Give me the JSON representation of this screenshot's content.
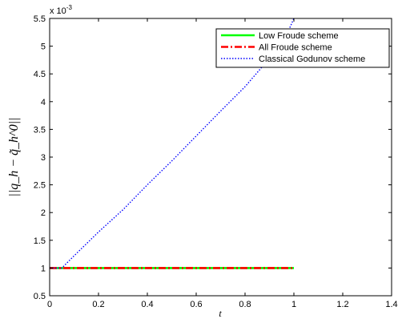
{
  "chart_data": {
    "type": "line",
    "title": "",
    "xlabel": "t",
    "ylabel": "||q_h − q̃_h^0||",
    "y_exponent": "x 10",
    "y_exponent_power": "-3",
    "xlim": [
      0,
      1.4
    ],
    "ylim": [
      0.5,
      5.5
    ],
    "xticks": [
      "0",
      "0.2",
      "0.4",
      "0.6",
      "0.8",
      "1",
      "1.2",
      "1.4"
    ],
    "yticks": [
      "0.5",
      "1",
      "1.5",
      "2",
      "2.5",
      "3",
      "3.5",
      "4",
      "4.5",
      "5",
      "5.5"
    ],
    "grid": false,
    "legend_position": "top-right",
    "series": [
      {
        "name": "Low Froude scheme",
        "color": "#00ff00",
        "style": "solid",
        "x": [
          0,
          1
        ],
        "y": [
          1.0,
          1.0
        ]
      },
      {
        "name": "All Froude scheme",
        "color": "#ff0000",
        "style": "dash-dot",
        "x": [
          0,
          1
        ],
        "y": [
          1.0,
          1.0
        ]
      },
      {
        "name": "Classical Godunov scheme",
        "color": "#0000ff",
        "style": "dotted",
        "x": [
          0,
          0.05,
          0.1,
          0.2,
          0.3,
          0.4,
          0.5,
          0.6,
          0.7,
          0.8,
          0.9,
          0.95,
          1.0
        ],
        "y": [
          1.0,
          1.0,
          1.22,
          1.65,
          2.05,
          2.5,
          2.93,
          3.38,
          3.83,
          4.27,
          4.78,
          5.0,
          5.5
        ]
      }
    ]
  }
}
